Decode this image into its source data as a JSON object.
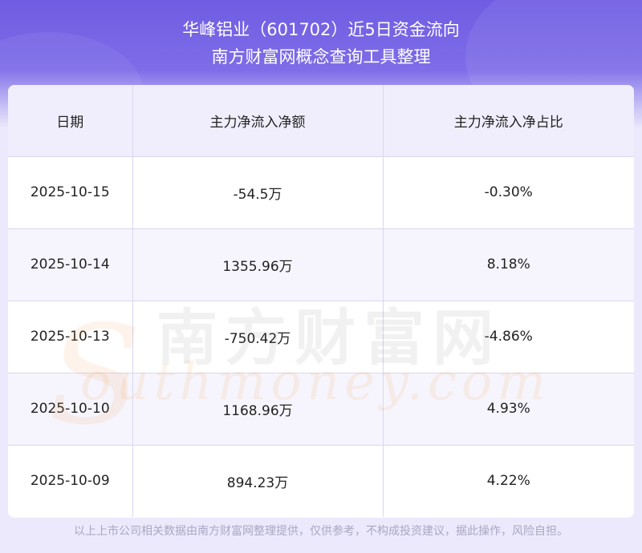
{
  "header": {
    "title_line1": "华峰铝业（601702）近5日资金流向",
    "title_line2": "南方财富网概念查询工具整理"
  },
  "table": {
    "columns": [
      "日期",
      "主力净流入净额",
      "主力净流入净占比"
    ],
    "rows": [
      [
        "2025-10-15",
        "-54.5万",
        "-0.30%"
      ],
      [
        "2025-10-14",
        "1355.96万",
        "8.18%"
      ],
      [
        "2025-10-13",
        "-750.42万",
        "-4.86%"
      ],
      [
        "2025-10-10",
        "1168.96万",
        "4.93%"
      ],
      [
        "2025-10-09",
        "894.23万",
        "4.22%"
      ]
    ]
  },
  "watermark": {
    "cn": "南方财富网",
    "en": "outhmoney.com",
    "s": "S"
  },
  "footer": {
    "text": "以上上市公司相关数据由南方财富网整理提供，仅供参考，不构成投资建议，据此操作，风险自担。"
  }
}
